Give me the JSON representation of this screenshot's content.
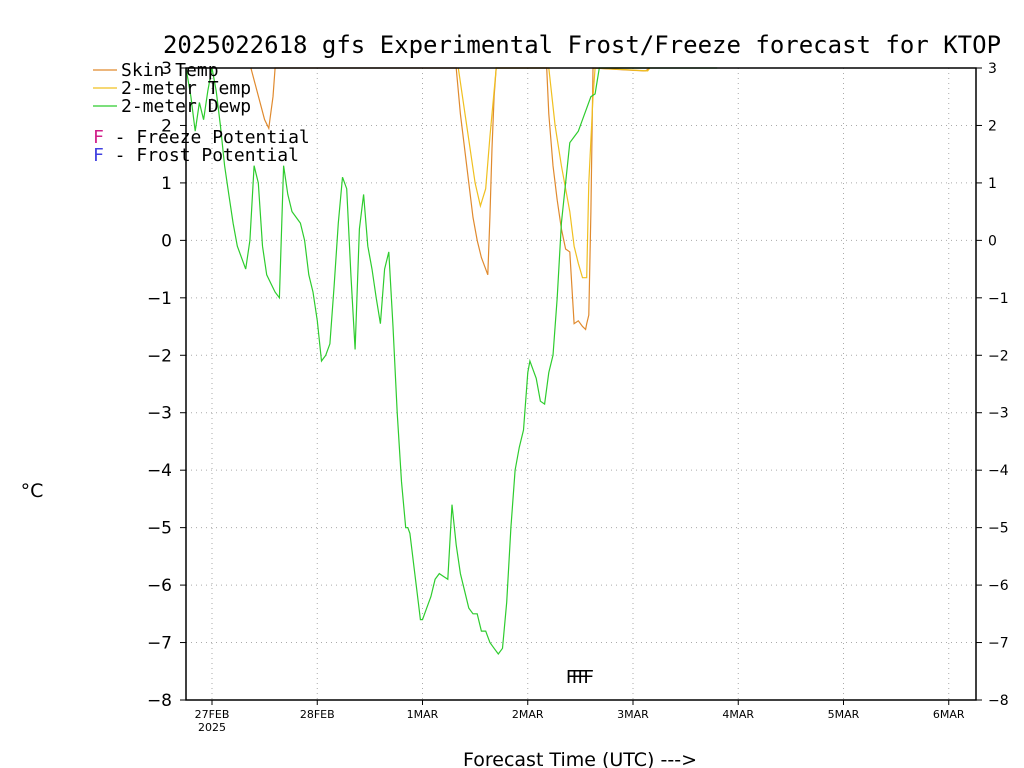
{
  "chart_data": {
    "type": "line",
    "title": "2025022618 gfs Experimental Frost/Freeze forecast for KTOP",
    "xlabel": "Forecast Time (UTC) --->",
    "ylabel": "°C",
    "ylim": [
      -8,
      3
    ],
    "xlim": [
      0,
      7.27
    ],
    "grid": true,
    "x_ticks": [
      {
        "x": 0,
        "label": "27FEB",
        "sub": "2025"
      },
      {
        "x": 1,
        "label": "28FEB",
        "sub": ""
      },
      {
        "x": 2,
        "label": "1MAR",
        "sub": ""
      },
      {
        "x": 3,
        "label": "2MAR",
        "sub": ""
      },
      {
        "x": 4,
        "label": "3MAR",
        "sub": ""
      },
      {
        "x": 5,
        "label": "4MAR",
        "sub": ""
      },
      {
        "x": 6,
        "label": "5MAR",
        "sub": ""
      },
      {
        "x": 7,
        "label": "6MAR",
        "sub": ""
      }
    ],
    "y_ticks": [
      -8,
      -7,
      -6,
      -5,
      -4,
      -3,
      -2,
      -1,
      0,
      1,
      2,
      3
    ],
    "legend": [
      {
        "label": "Skin Temp",
        "color": "#e08a2e"
      },
      {
        "label": "2-meter Temp",
        "color": "#f0c020"
      },
      {
        "label": "2-meter Dewp",
        "color": "#2ecc2e"
      }
    ],
    "annotations": [
      {
        "letter": "F",
        "text": "- Freeze Potential",
        "color": "#d0208a"
      },
      {
        "letter": "F",
        "text": "- Frost Potential",
        "color": "#4040e0"
      }
    ],
    "freeze_marker": {
      "label": "FFFF",
      "x": 3.36,
      "y": -7.55,
      "color": "#d0208a"
    },
    "series": [
      {
        "name": "Skin Temp",
        "color": "#e08a2e",
        "x": [
          0.37,
          0.5,
          0.54,
          0.55,
          0.58,
          0.6,
          2.32,
          2.36,
          2.42,
          2.48,
          2.52,
          2.56,
          2.6,
          2.62,
          2.64,
          2.66,
          2.68,
          2.7,
          2.72,
          2.74,
          3.18,
          3.2,
          3.24,
          3.28,
          3.32,
          3.36,
          3.4,
          3.44,
          3.48,
          3.52,
          3.55,
          3.56,
          3.58,
          3.6,
          3.62,
          4.1,
          4.12,
          4.16
        ],
        "y": [
          3,
          2.1,
          1.95,
          2.1,
          2.5,
          3,
          3,
          2.2,
          1.3,
          0.4,
          0.0,
          -0.3,
          -0.5,
          -0.6,
          0.4,
          1.6,
          2.5,
          3,
          3,
          3,
          3,
          2.2,
          1.3,
          0.7,
          0.2,
          -0.15,
          -0.2,
          -1.45,
          -1.4,
          -1.5,
          -1.55,
          -1.45,
          -1.3,
          0.5,
          3,
          2.95,
          2.95,
          3
        ]
      },
      {
        "name": "2-meter Temp",
        "color": "#f0c020",
        "x": [
          2.34,
          2.42,
          2.5,
          2.55,
          2.6,
          2.64,
          2.68,
          2.7,
          2.72,
          3.2,
          3.26,
          3.32,
          3.36,
          3.4,
          3.44,
          3.48,
          3.52,
          3.56,
          3.58,
          3.62,
          3.64,
          4.14,
          4.16
        ],
        "y": [
          3,
          2.0,
          1.0,
          0.6,
          0.9,
          1.8,
          2.6,
          3,
          3,
          3,
          2.0,
          1.3,
          0.9,
          0.5,
          -0.1,
          -0.4,
          -0.65,
          -0.65,
          1.0,
          2.5,
          3,
          2.95,
          3
        ]
      },
      {
        "name": "2-meter Dewp",
        "color": "#2ecc2e",
        "x": [
          -0.25,
          -0.2,
          -0.16,
          -0.12,
          -0.08,
          -0.04,
          0.0,
          0.04,
          0.08,
          0.12,
          0.16,
          0.2,
          0.24,
          0.28,
          0.32,
          0.36,
          0.4,
          0.44,
          0.48,
          0.52,
          0.56,
          0.6,
          0.64,
          0.68,
          0.72,
          0.76,
          0.8,
          0.84,
          0.88,
          0.92,
          0.96,
          1.0,
          1.04,
          1.08,
          1.12,
          1.16,
          1.2,
          1.24,
          1.28,
          1.32,
          1.36,
          1.4,
          1.44,
          1.48,
          1.52,
          1.56,
          1.6,
          1.64,
          1.68,
          1.72,
          1.76,
          1.8,
          1.82,
          1.84,
          1.86,
          1.88,
          1.9,
          1.92,
          1.94,
          1.96,
          1.98,
          2.0,
          2.04,
          2.08,
          2.12,
          2.16,
          2.2,
          2.24,
          2.28,
          2.32,
          2.36,
          2.4,
          2.44,
          2.48,
          2.52,
          2.56,
          2.6,
          2.64,
          2.68,
          2.72,
          2.76,
          2.8,
          2.84,
          2.88,
          2.92,
          2.96,
          3.0,
          3.02,
          3.04,
          3.08,
          3.12,
          3.16,
          3.2,
          3.24,
          3.28,
          3.32,
          3.36,
          3.4,
          3.44,
          3.48,
          3.52,
          3.56,
          3.6,
          3.64,
          3.68,
          3.72,
          3.76,
          3.8,
          3.84,
          3.88,
          3.92,
          3.96,
          4.0,
          4.04,
          4.08,
          4.12,
          4.16,
          4.2,
          4.24,
          4.28,
          4.32,
          4.36,
          4.4,
          4.44,
          4.48,
          4.52,
          4.56,
          4.6,
          4.64,
          4.68,
          4.72,
          4.76,
          4.8
        ],
        "y": [
          3,
          2.5,
          1.9,
          2.4,
          2.1,
          2.6,
          3,
          2.6,
          2.0,
          1.3,
          0.8,
          0.3,
          -0.1,
          -0.3,
          -0.5,
          0.0,
          1.3,
          1.0,
          -0.1,
          -0.6,
          -0.75,
          -0.9,
          -1.0,
          1.3,
          0.8,
          0.5,
          0.4,
          0.3,
          0.0,
          -0.6,
          -0.9,
          -1.4,
          -2.1,
          -2.0,
          -1.8,
          -0.8,
          0.3,
          1.1,
          0.9,
          -0.6,
          -1.9,
          0.2,
          0.8,
          -0.1,
          -0.5,
          -1.0,
          -1.45,
          -0.5,
          -0.2,
          -1.5,
          -3.0,
          -4.2,
          -4.6,
          -5.0,
          -5.0,
          -5.1,
          -5.4,
          -5.7,
          -6.0,
          -6.3,
          -6.6,
          -6.6,
          -6.4,
          -6.2,
          -5.9,
          -5.8,
          -5.85,
          -5.9,
          -4.6,
          -5.3,
          -5.8,
          -6.1,
          -6.4,
          -6.5,
          -6.5,
          -6.8,
          -6.8,
          -7.0,
          -7.1,
          -7.2,
          -7.1,
          -6.3,
          -5.0,
          -4.0,
          -3.6,
          -3.3,
          -2.3,
          -2.1,
          -2.2,
          -2.4,
          -2.8,
          -2.85,
          -2.3,
          -2.0,
          -1.0,
          0.3,
          1.0,
          1.7,
          1.8,
          1.9,
          2.1,
          2.3,
          2.5,
          2.55,
          3,
          3.0,
          3.0,
          3.0,
          3.0,
          3.0,
          3.0,
          3.0,
          3.0,
          3.0,
          3.0,
          3.0,
          3.0,
          3.0,
          3.0,
          3.0,
          3.0,
          3.0,
          3.0,
          3.0,
          3.0,
          3.0,
          3.0,
          3.0,
          3.0,
          3.0,
          3.0,
          3.0,
          3.0
        ]
      }
    ]
  }
}
